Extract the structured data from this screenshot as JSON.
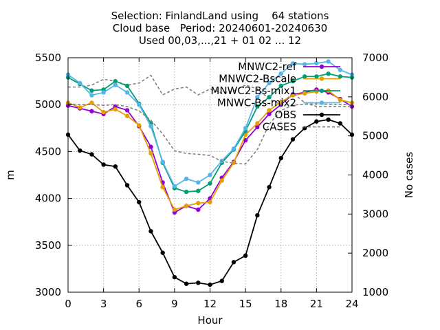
{
  "chart_data": {
    "type": "line",
    "title_lines": [
      "Selection: FinlandLand using    64 stations",
      "Cloud base   Period: 20240601-20240630",
      "Used 00,03,...,21 + 01 02 ... 12"
    ],
    "xlabel": "Hour",
    "ylabel": "m",
    "y2label": "No cases",
    "xlim": [
      0,
      24
    ],
    "ylim": [
      3000,
      5500
    ],
    "y2lim": [
      1000,
      7000
    ],
    "xticks": [
      0,
      3,
      6,
      9,
      12,
      15,
      18,
      21,
      24
    ],
    "yticks": [
      3000,
      3500,
      4000,
      4500,
      5000,
      5500
    ],
    "y2ticks": [
      1000,
      2000,
      3000,
      4000,
      5000,
      6000,
      7000
    ],
    "grid": true,
    "legend_position": "top-right",
    "x": [
      0,
      1,
      2,
      3,
      4,
      5,
      6,
      7,
      8,
      9,
      10,
      11,
      12,
      13,
      14,
      15,
      16,
      17,
      18,
      19,
      20,
      21,
      22,
      23,
      24
    ],
    "series": [
      {
        "name": "MNWC2-ref",
        "color": "#9400d3",
        "marker": "circle",
        "values": [
          4990,
          4960,
          4930,
          4900,
          4980,
          4940,
          4770,
          4550,
          4170,
          3850,
          3920,
          3880,
          4000,
          4220,
          4390,
          4620,
          4760,
          4900,
          5000,
          5110,
          5130,
          5160,
          5130,
          5060,
          4980
        ]
      },
      {
        "name": "MNWC2-Bscale",
        "color": "#e69f00",
        "marker": "circle",
        "values": [
          5020,
          4970,
          5020,
          4920,
          4950,
          4880,
          4780,
          4480,
          4120,
          3880,
          3920,
          3950,
          3960,
          4190,
          4380,
          4680,
          4800,
          4940,
          5030,
          5100,
          5120,
          5140,
          5150,
          5050,
          5020
        ]
      },
      {
        "name": "",
        "color": "#808080",
        "marker": "none",
        "dashed": true,
        "axis": "y2",
        "values": [
          6250,
          6250,
          6300,
          6450,
          6400,
          6300,
          6350,
          6550,
          6050,
          6200,
          6250,
          6050,
          6200,
          6100,
          6150,
          6300,
          6200,
          5950,
          5800,
          6100,
          5850,
          5750,
          5750,
          5750,
          5750
        ]
      },
      {
        "name": "MNWC2-Bs-mix1",
        "color": "#009e73",
        "marker": "circle",
        "values": [
          5290,
          5220,
          5150,
          5160,
          5250,
          5200,
          5010,
          4800,
          4380,
          4110,
          4070,
          4080,
          4160,
          4380,
          4520,
          4720,
          4980,
          5080,
          5200,
          5250,
          5300,
          5300,
          5330,
          5300,
          5290
        ]
      },
      {
        "name": "MNWC-Bs-mix2",
        "color": "#56b4e9",
        "marker": "circle",
        "values": [
          5320,
          5230,
          5100,
          5130,
          5210,
          5130,
          5000,
          4770,
          4390,
          4130,
          4210,
          4170,
          4250,
          4400,
          4530,
          4750,
          5080,
          5230,
          5330,
          5440,
          5430,
          5440,
          5460,
          5370,
          5320
        ]
      },
      {
        "name": "OBS",
        "color": "#000000",
        "marker": "circle",
        "values": [
          4680,
          4510,
          4470,
          4360,
          4340,
          4140,
          3960,
          3650,
          3420,
          3160,
          3090,
          3100,
          3080,
          3120,
          3320,
          3390,
          3820,
          4120,
          4430,
          4630,
          4750,
          4820,
          4840,
          4800,
          4680
        ]
      },
      {
        "name": "CASES",
        "color": "#808080",
        "marker": "none",
        "dashed": true,
        "axis": "y2",
        "values": [
          5820,
          5800,
          5800,
          5780,
          5800,
          5750,
          5640,
          5400,
          5050,
          4620,
          4550,
          4530,
          4500,
          4350,
          4300,
          4280,
          4650,
          5300,
          5650,
          5790,
          5810,
          5820,
          5810,
          5800,
          5800
        ]
      }
    ]
  }
}
